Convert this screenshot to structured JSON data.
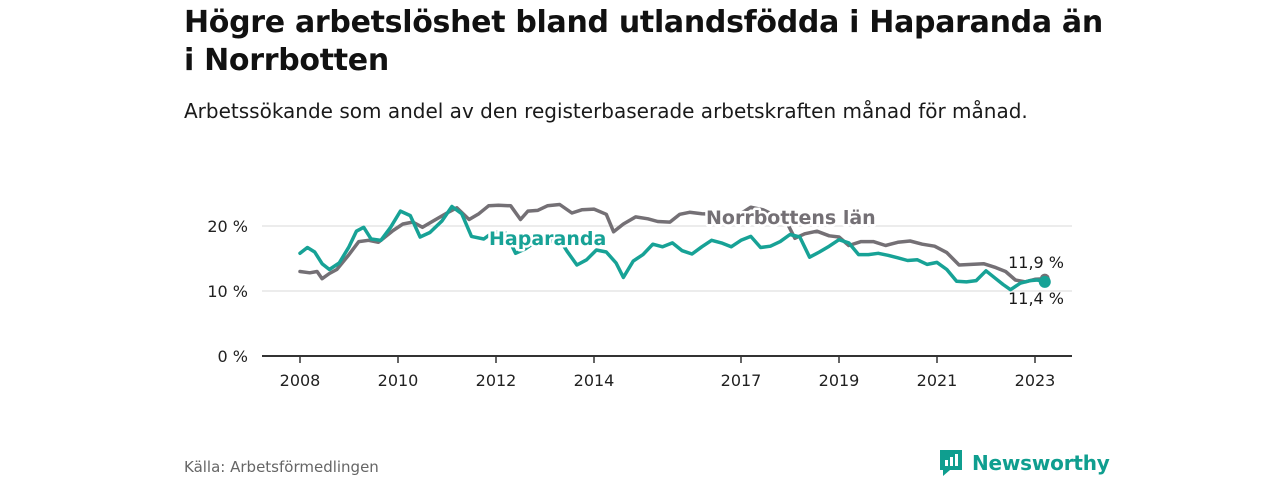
{
  "header": {
    "title": "Högre arbetslöshet bland utlandsfödda i Haparanda än i Norrbotten",
    "subtitle": "Arbetssökande som andel av den registerbaserade arbetskraften månad för månad."
  },
  "footer": {
    "source": "Källa: Arbetsförmedlingen",
    "brand": "Newsworthy"
  },
  "colors": {
    "haparanda": "#17a296",
    "norrbotten": "#747075",
    "grid": "#d9d9d9",
    "axis": "#333333",
    "brand": "#0f9e8f"
  },
  "chart_data": {
    "type": "line",
    "title": "Högre arbetslöshet bland utlandsfödda i Haparanda än i Norrbotten",
    "subtitle": "Arbetssökande som andel av den registerbaserade arbetskraften månad för månad.",
    "xlabel": "",
    "ylabel": "",
    "xlim": [
      2008,
      2023.4
    ],
    "ylim": [
      0,
      20
    ],
    "y_ticks": [
      0,
      10,
      20
    ],
    "y_tick_labels": [
      "0 %",
      "10 %",
      "20 %"
    ],
    "x_ticks": [
      2008,
      2010,
      2012,
      2014,
      2017,
      2019,
      2021,
      2023
    ],
    "x_tick_labels": [
      "2008",
      "2010",
      "2012",
      "2014",
      "2017",
      "2019",
      "2021",
      "2023"
    ],
    "grid": true,
    "series": [
      {
        "name": "Norrbottens län",
        "label": "Norrbottens län",
        "color": "#747075",
        "end_label": "11,9 %",
        "x": [
          2008.0,
          2008.2,
          2008.35,
          2008.45,
          2008.6,
          2008.75,
          2009.0,
          2009.2,
          2009.4,
          2009.6,
          2009.9,
          2010.1,
          2010.3,
          2010.5,
          2010.7,
          2011.0,
          2011.2,
          2011.45,
          2011.65,
          2011.85,
          2012.05,
          2012.3,
          2012.5,
          2012.65,
          2012.85,
          2013.05,
          2013.3,
          2013.55,
          2013.75,
          2014.0,
          2014.25,
          2014.4,
          2014.6,
          2014.85,
          2015.1,
          2015.3,
          2015.55,
          2015.75,
          2015.95,
          2016.2,
          2016.45,
          2016.7,
          2016.95,
          2017.2,
          2017.45,
          2017.7,
          2017.95,
          2018.1,
          2018.3,
          2018.55,
          2018.8,
          2019.0,
          2019.2,
          2019.45,
          2019.7,
          2019.95,
          2020.2,
          2020.45,
          2020.7,
          2020.95,
          2021.2,
          2021.45,
          2021.7,
          2021.95,
          2022.2,
          2022.4,
          2022.6,
          2022.8,
          2023.0,
          2023.2
        ],
        "y": [
          13.0,
          12.8,
          13.0,
          11.9,
          12.7,
          13.3,
          15.6,
          17.6,
          17.8,
          17.5,
          19.3,
          20.3,
          20.6,
          19.8,
          20.7,
          22.0,
          22.8,
          21.0,
          21.9,
          23.1,
          23.2,
          23.1,
          21.0,
          22.3,
          22.4,
          23.1,
          23.3,
          22.0,
          22.5,
          22.6,
          21.8,
          19.1,
          20.3,
          21.4,
          21.1,
          20.7,
          20.6,
          21.8,
          22.1,
          21.9,
          21.8,
          21.5,
          21.7,
          22.9,
          22.5,
          21.6,
          20.3,
          18.1,
          18.8,
          19.2,
          18.5,
          18.3,
          17.0,
          17.6,
          17.6,
          17.0,
          17.5,
          17.7,
          17.2,
          16.9,
          15.9,
          14.0,
          14.1,
          14.2,
          13.6,
          13.0,
          11.7,
          11.4,
          11.8,
          11.9
        ]
      },
      {
        "name": "Haparanda",
        "label": "Haparanda",
        "color": "#17a296",
        "end_label": "11,4 %",
        "x": [
          2008.0,
          2008.15,
          2008.3,
          2008.45,
          2008.6,
          2008.8,
          2009.0,
          2009.15,
          2009.3,
          2009.45,
          2009.65,
          2009.85,
          2010.05,
          2010.25,
          2010.45,
          2010.65,
          2010.9,
          2011.1,
          2011.3,
          2011.5,
          2011.75,
          2011.95,
          2012.2,
          2012.4,
          2012.6,
          2012.85,
          2013.05,
          2013.25,
          2013.45,
          2013.65,
          2013.85,
          2014.05,
          2014.25,
          2014.45,
          2014.6,
          2014.8,
          2015.0,
          2015.2,
          2015.4,
          2015.6,
          2015.8,
          2016.0,
          2016.2,
          2016.4,
          2016.6,
          2016.8,
          2017.0,
          2017.2,
          2017.4,
          2017.6,
          2017.8,
          2018.0,
          2018.2,
          2018.4,
          2018.6,
          2018.8,
          2019.0,
          2019.2,
          2019.4,
          2019.6,
          2019.8,
          2020.0,
          2020.2,
          2020.4,
          2020.6,
          2020.8,
          2021.0,
          2021.2,
          2021.4,
          2021.6,
          2021.8,
          2022.0,
          2022.2,
          2022.35,
          2022.5,
          2022.7,
          2022.9,
          2023.05,
          2023.2
        ],
        "y": [
          15.8,
          16.7,
          16.0,
          14.2,
          13.3,
          14.3,
          16.8,
          19.2,
          19.8,
          18.0,
          17.8,
          19.8,
          22.3,
          21.6,
          18.3,
          19.0,
          20.8,
          23.0,
          21.9,
          18.4,
          18.0,
          19.1,
          18.9,
          15.8,
          16.5,
          17.8,
          17.2,
          18.5,
          16.1,
          14.0,
          14.8,
          16.3,
          16.0,
          14.3,
          12.1,
          14.6,
          15.6,
          17.2,
          16.8,
          17.4,
          16.2,
          15.7,
          16.8,
          17.8,
          17.4,
          16.8,
          17.8,
          18.4,
          16.7,
          16.9,
          17.6,
          18.7,
          18.3,
          15.2,
          16.0,
          16.9,
          17.9,
          17.4,
          15.6,
          15.6,
          15.8,
          15.5,
          15.1,
          14.7,
          14.8,
          14.1,
          14.4,
          13.3,
          11.5,
          11.4,
          11.6,
          13.1,
          11.9,
          11.0,
          10.2,
          11.2,
          11.6,
          11.7,
          11.4
        ]
      }
    ]
  }
}
